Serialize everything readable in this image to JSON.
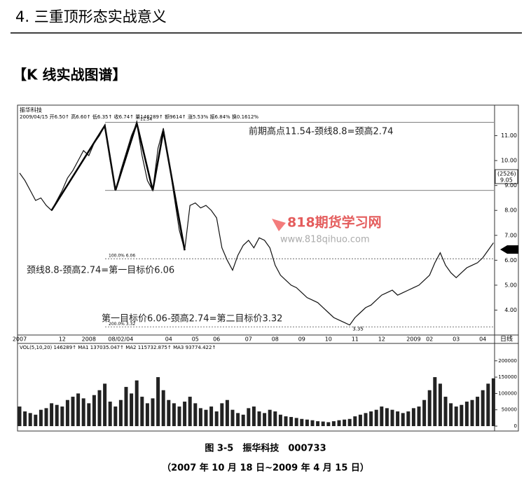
{
  "header": {
    "title": "4. 三重顶形态实战意义",
    "section": "【K 线实战图谱】"
  },
  "chart_data": [
    {
      "type": "line",
      "title": "振华科技",
      "subtitle": "2009/04/15 开6.50↑ 高6.60↑ 低6.35↑ 收6.74↑ 量146289↑ 额9614↑ 涨5.53% 振6.84% 换0.1612%",
      "color": "#111111",
      "categories": [
        "2007",
        null,
        null,
        null,
        null,
        null,
        null,
        null,
        "12",
        null,
        null,
        null,
        null,
        "2008",
        null,
        null,
        null,
        null,
        null,
        "08/02/04",
        null,
        null,
        null,
        null,
        null,
        null,
        null,
        null,
        "04",
        null,
        null,
        null,
        null,
        "05",
        null,
        null,
        null,
        "06",
        null,
        null,
        null,
        null,
        null,
        "07",
        null,
        null,
        null,
        null,
        "08",
        null,
        null,
        null,
        null,
        "09",
        null,
        null,
        null,
        null,
        "10",
        null,
        null,
        null,
        null,
        "11",
        null,
        null,
        null,
        null,
        "12",
        null,
        null,
        null,
        null,
        null,
        "2009",
        null,
        null,
        "02",
        null,
        null,
        null,
        null,
        "03",
        null,
        null,
        null,
        null,
        "04",
        null,
        null
      ],
      "values": [
        9.5,
        9.2,
        8.8,
        8.4,
        8.5,
        8.2,
        8.0,
        8.4,
        8.8,
        9.3,
        9.6,
        10.0,
        10.4,
        10.2,
        10.7,
        11.0,
        11.4,
        10.0,
        8.8,
        9.6,
        10.3,
        11.0,
        11.5,
        10.2,
        9.2,
        8.8,
        10.5,
        11.3,
        10.0,
        8.6,
        7.2,
        6.4,
        8.2,
        8.3,
        8.1,
        8.2,
        8.0,
        7.7,
        6.5,
        6.0,
        5.6,
        6.2,
        6.6,
        6.8,
        6.5,
        6.9,
        6.8,
        6.5,
        5.8,
        5.4,
        5.2,
        5.0,
        4.9,
        4.7,
        4.5,
        4.4,
        4.3,
        4.1,
        3.9,
        3.7,
        3.6,
        3.5,
        3.4,
        3.7,
        3.9,
        4.1,
        4.2,
        4.4,
        4.6,
        4.7,
        4.8,
        4.6,
        4.7,
        4.8,
        4.9,
        5.0,
        5.2,
        5.4,
        5.9,
        6.3,
        5.8,
        5.5,
        5.3,
        5.5,
        5.7,
        5.8,
        5.9,
        6.1,
        6.4,
        6.7
      ],
      "ylim": [
        3,
        12
      ],
      "yticks": [
        {
          "value": 4,
          "label": "4.00"
        },
        {
          "value": 5,
          "label": "5.00"
        },
        {
          "value": 6,
          "label": "6.00"
        },
        {
          "value": 7,
          "label": "7.00"
        },
        {
          "value": 8,
          "label": "8.00"
        },
        {
          "value": 9,
          "label": "9.00"
        },
        {
          "value": 10,
          "label": "10.00"
        },
        {
          "value": 11,
          "label": "11.00"
        }
      ],
      "reference_lines": [
        {
          "value": 11.54,
          "label": "11.54"
        },
        {
          "value": 8.8
        },
        {
          "value": 6.06,
          "label": "100.0% 6.06"
        },
        {
          "value": 3.32,
          "label": "200.0% 3.32"
        }
      ],
      "low_label": {
        "value": 3.35,
        "label": "3.35"
      },
      "annotations": [
        "前期高点11.54-颈线8.8=颈高2.74",
        "颈线8.8-颈高2.74=第一目标价6.06",
        "第一目标价6.06-颈高2.74=第二目标价3.32"
      ],
      "side_labels": [
        "(2526)",
        "9.05"
      ],
      "period_label": "日线",
      "watermark": {
        "title": "818期货学习网",
        "url": "www.818qihuo.com"
      }
    },
    {
      "type": "bar",
      "title": "VOL(5,10,20) 146289↑ MA1 137035.047↑ MA2 115732.875↑ MA3 93774.422↑",
      "color": "#222222",
      "values": [
        60000,
        45000,
        40000,
        35000,
        50000,
        55000,
        70000,
        65000,
        60000,
        80000,
        90000,
        100000,
        85000,
        70000,
        95000,
        110000,
        130000,
        75000,
        60000,
        80000,
        120000,
        100000,
        140000,
        90000,
        70000,
        85000,
        150000,
        110000,
        80000,
        70000,
        60000,
        75000,
        90000,
        70000,
        55000,
        50000,
        60000,
        45000,
        70000,
        80000,
        50000,
        40000,
        35000,
        55000,
        60000,
        45000,
        40000,
        50000,
        45000,
        35000,
        30000,
        28000,
        25000,
        22000,
        20000,
        18000,
        15000,
        14000,
        12000,
        15000,
        18000,
        20000,
        22000,
        30000,
        35000,
        40000,
        45000,
        50000,
        60000,
        55000,
        50000,
        45000,
        40000,
        45000,
        55000,
        60000,
        80000,
        110000,
        150000,
        130000,
        90000,
        70000,
        60000,
        65000,
        75000,
        80000,
        90000,
        110000,
        130000,
        146289
      ],
      "ylim": [
        0,
        250000
      ],
      "yticks": [
        0,
        50000,
        100000,
        150000,
        200000
      ]
    }
  ],
  "caption": {
    "figure": "图 3-5　振华科技　000733",
    "dates": "（2007 年 10 月 18 日~2009 年 4 月 15 日）"
  }
}
